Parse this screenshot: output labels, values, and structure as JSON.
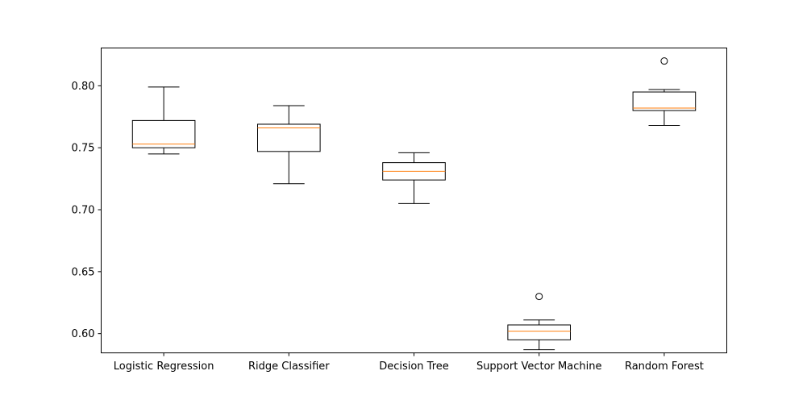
{
  "chart_data": {
    "type": "boxplot",
    "title": "",
    "xlabel": "",
    "ylabel": "",
    "categories": [
      "Logistic Regression",
      "Ridge Classifier",
      "Decision Tree",
      "Support Vector Machine",
      "Random Forest"
    ],
    "boxes": [
      {
        "category": "Logistic Regression",
        "whisker_low": 0.745,
        "q1": 0.75,
        "median": 0.753,
        "q3": 0.772,
        "whisker_high": 0.799,
        "outliers": []
      },
      {
        "category": "Ridge Classifier",
        "whisker_low": 0.721,
        "q1": 0.747,
        "median": 0.766,
        "q3": 0.769,
        "whisker_high": 0.784,
        "outliers": []
      },
      {
        "category": "Decision Tree",
        "whisker_low": 0.705,
        "q1": 0.724,
        "median": 0.731,
        "q3": 0.738,
        "whisker_high": 0.746,
        "outliers": []
      },
      {
        "category": "Support Vector Machine",
        "whisker_low": 0.587,
        "q1": 0.595,
        "median": 0.602,
        "q3": 0.607,
        "whisker_high": 0.611,
        "outliers": [
          0.63
        ]
      },
      {
        "category": "Random Forest",
        "whisker_low": 0.768,
        "q1": 0.78,
        "median": 0.782,
        "q3": 0.795,
        "whisker_high": 0.797,
        "outliers": [
          0.82
        ]
      }
    ],
    "ylim": [
      0.5845,
      0.8305
    ],
    "yticks": [
      0.6,
      0.65,
      0.7,
      0.75,
      0.8
    ],
    "ytick_labels": [
      "0.60",
      "0.65",
      "0.70",
      "0.75",
      "0.80"
    ],
    "grid": false,
    "legend": "none",
    "colors": {
      "box": "#000000",
      "median": "#ff7f0e",
      "outlier": "#000000",
      "axes": "#000000"
    }
  }
}
